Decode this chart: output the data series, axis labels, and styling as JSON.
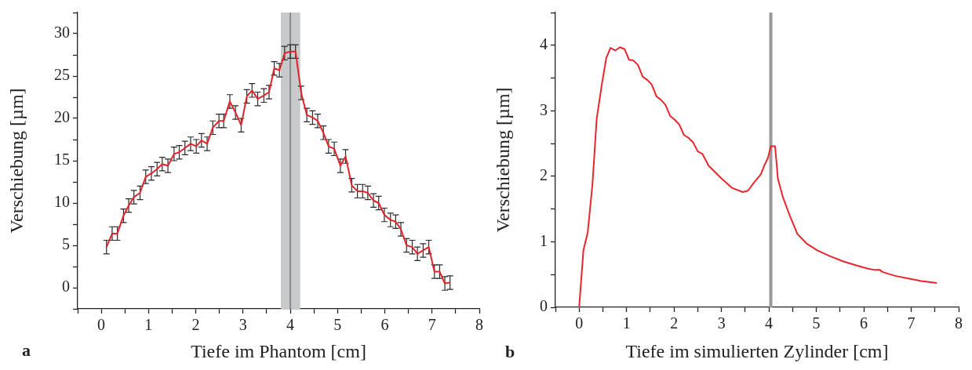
{
  "chart_data": [
    {
      "type": "line",
      "xlabel": "Tiefe im Phantom [cm]",
      "ylabel": "Verschiebung [µm]",
      "annotations": [
        "a"
      ],
      "x": [
        0.11,
        0.23,
        0.34,
        0.47,
        0.58,
        0.69,
        0.82,
        0.94,
        1.06,
        1.18,
        1.29,
        1.41,
        1.54,
        1.65,
        1.77,
        1.89,
        2.01,
        2.12,
        2.24,
        2.36,
        2.49,
        2.59,
        2.72,
        2.84,
        2.96,
        3.08,
        3.19,
        3.31,
        3.44,
        3.55,
        3.66,
        3.77,
        3.88,
        4.0,
        4.11,
        4.23,
        4.35,
        4.47,
        4.58,
        4.7,
        4.81,
        4.93,
        5.06,
        5.17,
        5.3,
        5.42,
        5.53,
        5.64,
        5.76,
        5.87,
        5.99,
        6.12,
        6.23,
        6.34,
        6.46,
        6.58,
        6.69,
        6.81,
        6.93,
        7.05,
        7.16,
        7.27,
        7.38
      ],
      "series": [
        {
          "color": "#e3232c",
          "values": [
            4.8,
            6.4,
            6.4,
            8.5,
            9.7,
            10.7,
            11.2,
            13.1,
            13.5,
            14.0,
            14.6,
            14.4,
            15.8,
            16.0,
            16.5,
            17.0,
            16.7,
            17.4,
            17.0,
            18.9,
            19.7,
            19.7,
            22.0,
            20.7,
            19.2,
            22.6,
            23.3,
            22.3,
            22.7,
            23.1,
            25.9,
            25.7,
            27.7,
            27.9,
            27.9,
            23.0,
            20.4,
            20.1,
            19.7,
            18.3,
            16.7,
            16.4,
            14.4,
            15.5,
            12.1,
            11.4,
            11.4,
            11.2,
            10.3,
            10.0,
            8.6,
            8.0,
            7.8,
            6.9,
            5.0,
            4.8,
            4.0,
            4.4,
            4.8,
            1.9,
            1.9,
            0.5,
            0.6
          ],
          "errors": [
            0.8,
            0.8,
            0.8,
            0.8,
            0.8,
            0.8,
            0.8,
            0.8,
            0.8,
            0.8,
            0.8,
            0.8,
            0.8,
            0.8,
            0.8,
            0.8,
            0.8,
            0.8,
            0.8,
            0.8,
            0.8,
            0.8,
            0.8,
            0.8,
            0.8,
            0.8,
            0.8,
            0.8,
            0.8,
            0.8,
            0.8,
            0.8,
            0.8,
            0.8,
            0.8,
            0.8,
            0.8,
            0.8,
            0.8,
            0.8,
            0.8,
            0.8,
            0.8,
            0.8,
            0.8,
            0.8,
            0.8,
            0.8,
            0.8,
            0.8,
            0.8,
            0.8,
            0.8,
            0.8,
            0.8,
            0.8,
            0.8,
            0.8,
            0.8,
            0.8,
            0.8,
            0.8,
            0.8
          ]
        }
      ],
      "bands": [
        {
          "axis": "x",
          "from": 3.8,
          "to": 4.21,
          "color": "#c8c9cb"
        }
      ],
      "ref_lines": [
        {
          "axis": "x",
          "value": 4.0,
          "color": "#8a8a8a"
        }
      ],
      "xlim": [
        -0.5,
        8
      ],
      "xticks": [
        {
          "value": -0.5,
          "label": null
        },
        0,
        {
          "value": 0.5,
          "label": null
        },
        1,
        {
          "value": 1.5,
          "label": null
        },
        2,
        {
          "value": 2.5,
          "label": null
        },
        3,
        {
          "value": 3.5,
          "label": null
        },
        4,
        {
          "value": 4.5,
          "label": null
        },
        5,
        {
          "value": 5.5,
          "label": null
        },
        6,
        {
          "value": 6.5,
          "label": null
        },
        7,
        {
          "value": 7.5,
          "label": null
        },
        8
      ],
      "ylim": [
        -2.5,
        32.5
      ],
      "yticks": [
        {
          "value": -2.5,
          "label": null
        },
        0,
        {
          "value": 2.5,
          "label": null
        },
        5,
        {
          "value": 7.5,
          "label": null
        },
        10,
        {
          "value": 12.5,
          "label": null
        },
        15,
        {
          "value": 17.5,
          "label": null
        },
        20,
        {
          "value": 22.5,
          "label": null
        },
        25,
        {
          "value": 27.5,
          "label": null
        },
        30,
        {
          "value": 32.5,
          "label": null
        }
      ]
    },
    {
      "type": "line",
      "xlabel": "Tiefe im simulierten Zylinder [cm]",
      "ylabel": "Verschiebung [µm]",
      "annotations": [
        "b"
      ],
      "x": [
        0,
        0.09,
        0.18,
        0.28,
        0.37,
        0.48,
        0.57,
        0.66,
        0.76,
        0.86,
        0.96,
        1.05,
        1.14,
        1.24,
        1.34,
        1.44,
        1.53,
        1.63,
        1.72,
        1.82,
        1.92,
        2.02,
        2.11,
        2.21,
        2.3,
        2.4,
        2.5,
        2.6,
        2.73,
        3.01,
        3.23,
        3.45,
        3.56,
        3.67,
        3.83,
        3.9,
        3.98,
        4.04,
        4.13,
        4.19,
        4.3,
        4.44,
        4.6,
        4.8,
        5.02,
        5.29,
        5.57,
        5.84,
        6.09,
        6.23,
        6.34,
        6.39,
        6.66,
        6.94,
        7.21,
        7.54
      ],
      "series": [
        {
          "color": "#e8262d",
          "values": [
            0,
            0.87,
            1.14,
            1.87,
            2.88,
            3.41,
            3.8,
            3.96,
            3.92,
            3.97,
            3.94,
            3.78,
            3.77,
            3.7,
            3.52,
            3.47,
            3.4,
            3.22,
            3.17,
            3.09,
            2.92,
            2.86,
            2.79,
            2.63,
            2.59,
            2.52,
            2.38,
            2.34,
            2.16,
            1.96,
            1.82,
            1.76,
            1.78,
            1.89,
            2.03,
            2.16,
            2.28,
            2.46,
            2.46,
            1.96,
            1.67,
            1.4,
            1.12,
            0.97,
            0.87,
            0.78,
            0.7,
            0.64,
            0.59,
            0.57,
            0.57,
            0.54,
            0.48,
            0.44,
            0.4,
            0.37
          ]
        }
      ],
      "ref_lines": [
        {
          "axis": "x",
          "value": 4.04,
          "color": "#9a9a9a"
        }
      ],
      "xlim": [
        -0.5,
        8
      ],
      "xticks": [
        {
          "value": -0.5,
          "label": null
        },
        0,
        {
          "value": 0.5,
          "label": null
        },
        1,
        {
          "value": 1.5,
          "label": null
        },
        2,
        {
          "value": 2.5,
          "label": null
        },
        3,
        {
          "value": 3.5,
          "label": null
        },
        4,
        {
          "value": 4.5,
          "label": null
        },
        5,
        {
          "value": 5.5,
          "label": null
        },
        6,
        {
          "value": 6.5,
          "label": null
        },
        7,
        {
          "value": 7.5,
          "label": null
        },
        8
      ],
      "ylim": [
        0,
        4.5
      ],
      "yticks": [
        0,
        {
          "value": 0.5,
          "label": null
        },
        1,
        {
          "value": 1.5,
          "label": null
        },
        2,
        {
          "value": 2.5,
          "label": null
        },
        3,
        {
          "value": 3.5,
          "label": null
        },
        4,
        {
          "value": 4.5,
          "label": null
        }
      ]
    }
  ]
}
